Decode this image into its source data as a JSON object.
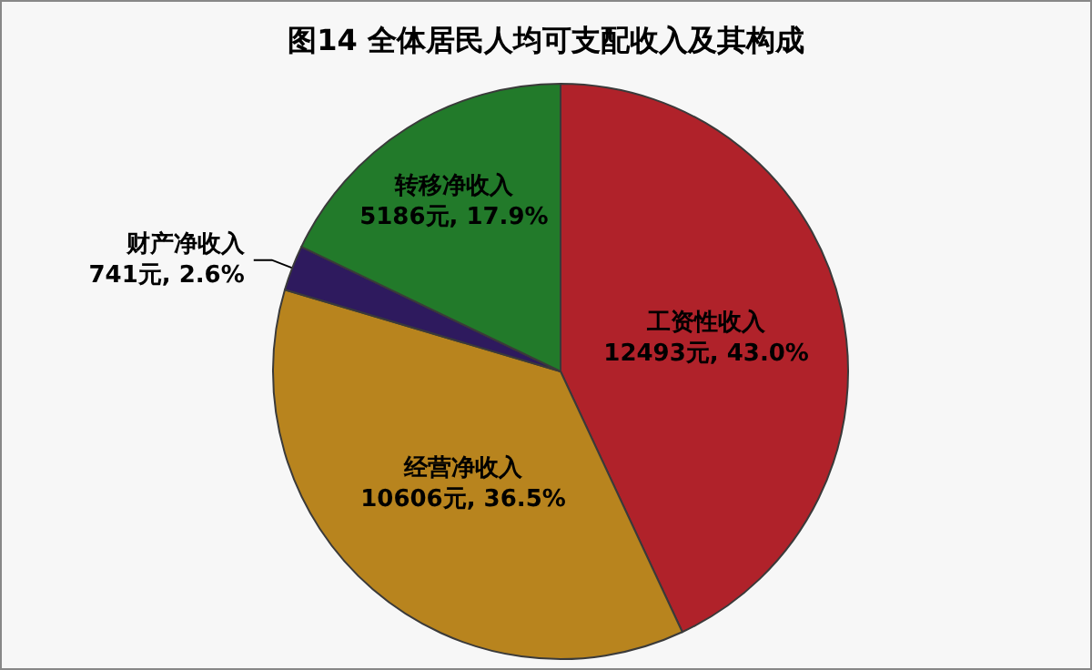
{
  "chart_data": {
    "type": "pie",
    "title": "图14 全体居民人均可支配收入及其构成",
    "categories": [
      "工资性收入",
      "经营净收入",
      "财产净收入",
      "转移净收入"
    ],
    "values": [
      12493,
      10606,
      741,
      5186
    ],
    "colors": [
      "#b0222a",
      "#b8841e",
      "#2e1a5e",
      "#227a2a"
    ],
    "value_labels": [
      "12493元, 43.0%",
      "10606元, 36.5%",
      "741元, 2.6%",
      "5186元, 17.9%"
    ]
  }
}
